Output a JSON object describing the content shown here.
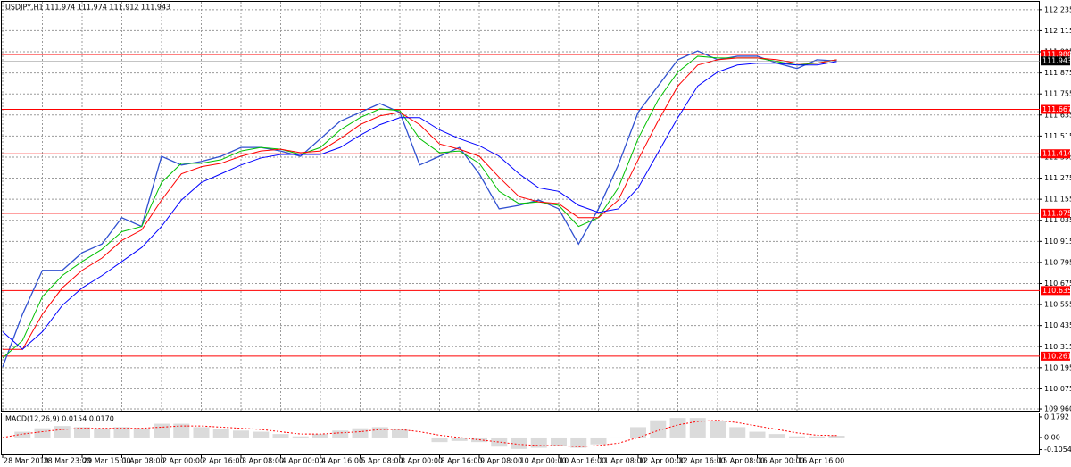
{
  "chart_data": [
    {
      "type": "line",
      "title": "USDJPY,H1 111.974 111.974 111.912 111.943",
      "categories": [
        "28 Mar 2019",
        null,
        "28 Mar 23:00",
        null,
        "29 Mar 15:00",
        null,
        "1 Apr 08:00",
        null,
        "2 Apr 00:00",
        null,
        "2 Apr 16:00",
        null,
        "3 Apr 08:00",
        null,
        "4 Apr 00:00",
        null,
        "4 Apr 16:00",
        null,
        "5 Apr 08:00",
        null,
        "8 Apr 00:00",
        null,
        "8 Apr 16:00",
        null,
        "9 Apr 08:00",
        null,
        "10 Apr 00:00",
        null,
        "10 Apr 16:00",
        null,
        "11 Apr 08:00",
        null,
        "12 Apr 00:00",
        null,
        "12 Apr 16:00",
        null,
        "15 Apr 08:00",
        null,
        "16 Apr 00:00",
        null,
        "16 Apr 16:00",
        null,
        null
      ],
      "series": [
        {
          "color": "#3050d0",
          "values": [
            110.2,
            110.5,
            110.75,
            110.75,
            110.85,
            110.9,
            111.05,
            111.0,
            111.4,
            111.35,
            111.37,
            111.4,
            111.45,
            111.45,
            111.43,
            111.4,
            111.5,
            111.6,
            111.65,
            111.7,
            111.65,
            111.35,
            111.4,
            111.45,
            111.3,
            111.1,
            111.12,
            111.15,
            111.1,
            110.9,
            111.1,
            111.35,
            111.65,
            111.8,
            111.95,
            112.0,
            111.95,
            111.97,
            111.97,
            111.93,
            111.9,
            111.95,
            111.943
          ]
        },
        {
          "color": "#00c000",
          "values": [
            110.25,
            110.35,
            110.6,
            110.72,
            110.8,
            110.87,
            110.97,
            111.0,
            111.25,
            111.36,
            111.36,
            111.38,
            111.43,
            111.45,
            111.44,
            111.41,
            111.45,
            111.55,
            111.62,
            111.67,
            111.66,
            111.5,
            111.42,
            111.43,
            111.36,
            111.2,
            111.13,
            111.14,
            111.12,
            111.0,
            111.05,
            111.22,
            111.5,
            111.72,
            111.88,
            111.97,
            111.96,
            111.96,
            111.96,
            111.94,
            111.92,
            111.93,
            111.95
          ]
        },
        {
          "color": "#ff0000",
          "values": [
            110.3,
            110.3,
            110.5,
            110.65,
            110.75,
            110.82,
            110.92,
            110.98,
            111.15,
            111.3,
            111.34,
            111.36,
            111.4,
            111.43,
            111.44,
            111.42,
            111.43,
            111.5,
            111.58,
            111.63,
            111.65,
            111.58,
            111.47,
            111.44,
            111.4,
            111.28,
            111.17,
            111.14,
            111.13,
            111.05,
            111.05,
            111.15,
            111.38,
            111.6,
            111.8,
            111.92,
            111.95,
            111.96,
            111.96,
            111.95,
            111.93,
            111.93,
            111.95
          ]
        },
        {
          "color": "#0000ff",
          "values": [
            110.4,
            110.3,
            110.4,
            110.55,
            110.65,
            110.72,
            110.8,
            110.88,
            111.0,
            111.15,
            111.25,
            111.3,
            111.35,
            111.39,
            111.41,
            111.41,
            111.41,
            111.45,
            111.52,
            111.58,
            111.62,
            111.62,
            111.55,
            111.5,
            111.46,
            111.4,
            111.3,
            111.22,
            111.2,
            111.12,
            111.08,
            111.1,
            111.22,
            111.42,
            111.62,
            111.8,
            111.88,
            111.92,
            111.93,
            111.93,
            111.92,
            111.92,
            111.94
          ]
        }
      ],
      "levels": [
        {
          "value": 111.98,
          "label": "111.980"
        },
        111.667,
        111.414,
        111.075,
        110.635,
        110.261
      ],
      "level_color": "#ff0000",
      "last": 111.943,
      "ylim": [
        109.95,
        112.28
      ],
      "yticks": [
        112.235,
        112.115,
        111.995,
        111.875,
        111.755,
        111.635,
        111.515,
        111.395,
        111.275,
        111.155,
        111.035,
        110.915,
        110.795,
        110.675,
        110.555,
        110.435,
        110.315,
        110.195,
        110.075,
        {
          "value": 109.96,
          "label": "109.960"
        }
      ],
      "grid": true
    },
    {
      "type": "macd",
      "title": "MACD(12,26,9) 0.0154 0.0170",
      "series": [
        {
          "type": "bar",
          "color": "#b8b8b8",
          "values": [
            0.0,
            0.05,
            0.08,
            0.1,
            0.09,
            0.08,
            0.09,
            0.08,
            0.12,
            0.12,
            0.09,
            0.07,
            0.06,
            0.05,
            0.03,
            0.01,
            0.03,
            0.06,
            0.08,
            0.09,
            0.07,
            0.0,
            -0.04,
            -0.03,
            -0.04,
            -0.08,
            -0.1,
            -0.09,
            -0.07,
            -0.09,
            -0.06,
            0.0,
            0.09,
            0.15,
            0.17,
            0.17,
            0.14,
            0.09,
            0.05,
            0.03,
            0.01,
            0.01,
            0.0154
          ]
        },
        {
          "type": "line",
          "color": "#ff0000",
          "values": [
            0.0,
            0.03,
            0.05,
            0.07,
            0.08,
            0.08,
            0.08,
            0.08,
            0.09,
            0.1,
            0.1,
            0.09,
            0.08,
            0.07,
            0.05,
            0.03,
            0.03,
            0.04,
            0.05,
            0.07,
            0.07,
            0.05,
            0.02,
            0.0,
            -0.02,
            -0.04,
            -0.06,
            -0.07,
            -0.07,
            -0.08,
            -0.07,
            -0.05,
            0.0,
            0.06,
            0.11,
            0.14,
            0.15,
            0.13,
            0.1,
            0.07,
            0.04,
            0.02,
            0.017
          ]
        }
      ],
      "ylim": [
        -0.148,
        0.21
      ],
      "yticks": [
        0.1792,
        {
          "value": 0,
          "label": "0.00"
        },
        -0.1054
      ]
    }
  ]
}
